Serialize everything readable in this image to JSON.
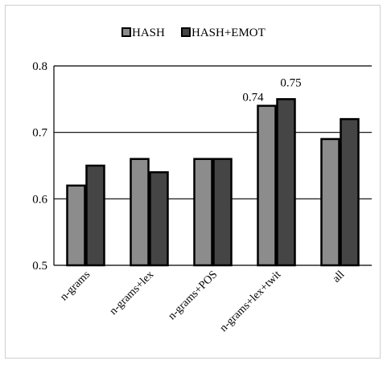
{
  "chart_data": {
    "type": "bar",
    "title": "",
    "xlabel": "",
    "ylabel": "",
    "categories": [
      "n-grams",
      "n-grams+lex",
      "n-grams+POS",
      "n-grams+lex+twit",
      "all"
    ],
    "series": [
      {
        "name": "HASH",
        "values": [
          0.62,
          0.66,
          0.66,
          0.74,
          0.69
        ],
        "color": "#8c8c8c"
      },
      {
        "name": "HASH+EMOT",
        "values": [
          0.65,
          0.64,
          0.66,
          0.75,
          0.72
        ],
        "color": "#454545"
      }
    ],
    "ylim": [
      0.5,
      0.8
    ],
    "yticks": [
      "0.5",
      "0.6",
      "0.7",
      "0.8"
    ],
    "data_labels": [
      {
        "category_index": 3,
        "series_index": 0,
        "text": "0.74"
      },
      {
        "category_index": 3,
        "series_index": 1,
        "text": "0.75"
      }
    ],
    "grid": true,
    "legend_position": "top"
  }
}
